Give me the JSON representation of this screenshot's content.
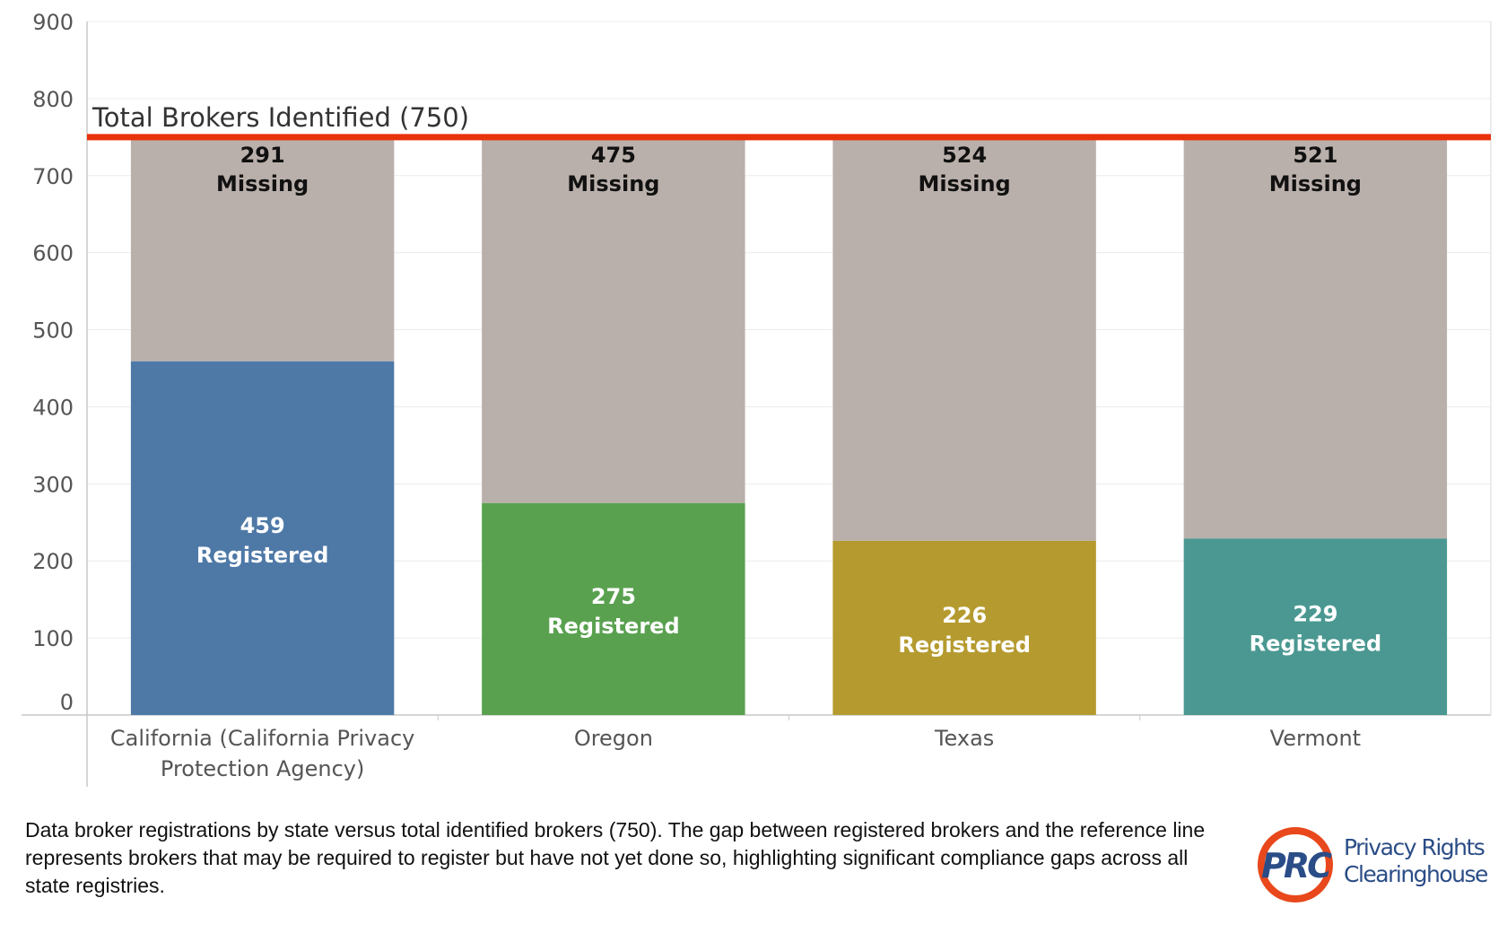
{
  "chart_data": {
    "type": "bar",
    "stacked": true,
    "categories": [
      "California (California Privacy Protection Agency)",
      "Oregon",
      "Texas",
      "Vermont"
    ],
    "series": [
      {
        "name": "Registered",
        "values": [
          459,
          275,
          226,
          229
        ],
        "colors": [
          "#4e79a7",
          "#59a14f",
          "#b59b2f",
          "#4a9891"
        ]
      },
      {
        "name": "Missing",
        "values": [
          291,
          475,
          524,
          521
        ],
        "color": "#bab0ab"
      }
    ],
    "y_ticks": [
      0,
      100,
      200,
      300,
      400,
      500,
      600,
      700,
      800,
      900
    ],
    "ylim": [
      0,
      900
    ],
    "reference_line": {
      "value": 750,
      "label": "Total Brokers Identified (750)",
      "color": "#e8320c"
    },
    "registered_labels": [
      "459",
      "275",
      "226",
      "229"
    ],
    "missing_labels": [
      "291",
      "475",
      "524",
      "521"
    ],
    "registered_word": "Registered",
    "missing_word": "Missing",
    "grid": true,
    "legend": "none"
  },
  "caption": "Data broker registrations by state versus total identified brokers (750). The gap between registered brokers and the reference line represents brokers that may be required to register but have not yet done so, highlighting significant compliance gaps across all state registries.",
  "logo": {
    "mark": "PRC",
    "line1": "Privacy Rights",
    "line2": "Clearinghouse",
    "ring_color": "#e8481c",
    "text_color": "#2b4d87"
  }
}
